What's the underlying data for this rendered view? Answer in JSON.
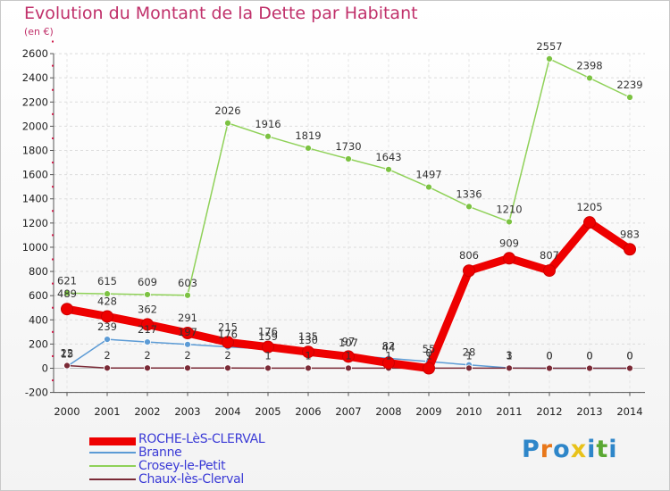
{
  "title": "Evolution du Montant de la Dette par Habitant",
  "subtitle": "(en €)",
  "logo": {
    "letters": [
      "P",
      "r",
      "o",
      "x",
      "i",
      "t",
      "i"
    ],
    "colors": [
      "#2e86c9",
      "#e8771a",
      "#2e86c9",
      "#e8c21a",
      "#2e86c9",
      "#5aa832",
      "#2e86c9"
    ]
  },
  "chart_data": {
    "type": "line",
    "title": "Evolution du Montant de la Dette par Habitant",
    "ylabel": "(en €)",
    "xlabel": "",
    "ylim": [
      -200,
      2600
    ],
    "yticks": [
      "-200",
      "0",
      "200",
      "400",
      "600",
      "800",
      "1000",
      "1200",
      "1400",
      "1600",
      "1800",
      "2000",
      "2200",
      "2400",
      "2600"
    ],
    "yticks_values": [
      -200,
      0,
      200,
      400,
      600,
      800,
      1000,
      1200,
      1400,
      1600,
      1800,
      2000,
      2200,
      2400,
      2600
    ],
    "grid": true,
    "legend_position": "bottom-left",
    "categories": [
      "2000",
      "2001",
      "2002",
      "2003",
      "2004",
      "2005",
      "2006",
      "2007",
      "2008",
      "2009",
      "2010",
      "2011",
      "2012",
      "2013",
      "2014"
    ],
    "series": [
      {
        "name": "ROCHE-LèS-CLERVAL",
        "color": "#ee0000",
        "marker": "#ee0000",
        "values": [
          489,
          428,
          362,
          291,
          215,
          176,
          135,
          97,
          44,
          0,
          806,
          909,
          807,
          1205,
          983
        ],
        "labels": [
          "489",
          "428",
          "362",
          "291",
          "215",
          "176",
          "135",
          "97",
          "44",
          "0",
          "806",
          "909",
          "807",
          "1205",
          "983"
        ]
      },
      {
        "name": "Branne",
        "color": "#5c9bd5",
        "marker": "#5c9bd5",
        "values": [
          15,
          239,
          217,
          197,
          176,
          159,
          130,
          107,
          82,
          55,
          28,
          3,
          0,
          0,
          0
        ],
        "labels": [
          "15",
          "239",
          "217",
          "197",
          "176",
          "159",
          "130",
          "107",
          "82",
          "55",
          "28",
          "3",
          "0",
          "0",
          "0"
        ]
      },
      {
        "name": "Crosey-le-Petit",
        "color": "#8fd158",
        "marker": "#7cc242",
        "values": [
          621,
          615,
          609,
          603,
          2026,
          1916,
          1819,
          1730,
          1643,
          1497,
          1336,
          1210,
          2557,
          2398,
          2239
        ],
        "labels": [
          "621",
          "615",
          "609",
          "603",
          "2026",
          "1916",
          "1819",
          "1730",
          "1643",
          "1497",
          "1336",
          "1210",
          "2557",
          "2398",
          "2239"
        ]
      },
      {
        "name": "Chaux-lès-Clerval",
        "color": "#7a2a36",
        "marker": "#7a2a36",
        "values": [
          22,
          2,
          2,
          2,
          2,
          1,
          1,
          1,
          1,
          1,
          1,
          1,
          0,
          0,
          0
        ],
        "labels": [
          "22",
          "2",
          "2",
          "2",
          "2",
          "1",
          "1",
          "1",
          "1",
          "1",
          "1",
          "1",
          "0",
          "0",
          "0"
        ]
      }
    ]
  },
  "legend": [
    {
      "label": "ROCHE-LèS-CLERVAL",
      "color": "#ee0000",
      "text_color": "#3a3ad6",
      "thickness": 9
    },
    {
      "label": "Branne",
      "color": "#5c9bd5",
      "text_color": "#3a3ad6",
      "thickness": 2
    },
    {
      "label": "Crosey-le-Petit",
      "color": "#8fd158",
      "text_color": "#3a3ad6",
      "thickness": 2
    },
    {
      "label": "Chaux-lès-Clerval",
      "color": "#7a2a36",
      "text_color": "#3a3ad6",
      "thickness": 2
    }
  ]
}
